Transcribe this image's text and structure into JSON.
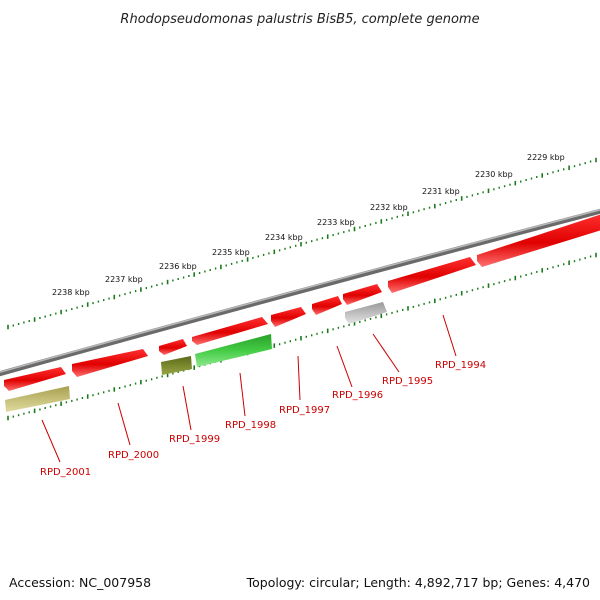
{
  "title": "Rhodopseudomonas palustris BisB5, complete genome",
  "footer": {
    "accession": "Accession: NC_007958",
    "topology": "Topology: circular; Length: 4,892,717 bp; Genes: 4,470"
  },
  "colors": {
    "backbone": "#808080",
    "tick": "#1a7a1a",
    "gene_forward": "#e00000",
    "gene_reverse_green": "#3cc63c",
    "gene_reverse_olive": "#6e7d22",
    "gene_reverse_khaki": "#c8c47a",
    "gene_reverse_grey": "#c0c0c0",
    "label": "#cc0000"
  },
  "scale_labels": [
    {
      "kbp": 2238,
      "text": "2238 kbp"
    },
    {
      "kbp": 2237,
      "text": "2237 kbp"
    },
    {
      "kbp": 2236,
      "text": "2236 kbp"
    },
    {
      "kbp": 2235,
      "text": "2235 kbp"
    },
    {
      "kbp": 2234,
      "text": "2234 kbp"
    },
    {
      "kbp": 2233,
      "text": "2233 kbp"
    },
    {
      "kbp": 2232,
      "text": "2232 kbp"
    },
    {
      "kbp": 2231,
      "text": "2231 kbp"
    },
    {
      "kbp": 2230,
      "text": "2230 kbp"
    },
    {
      "kbp": 2229,
      "text": "2229 kbp"
    }
  ],
  "gene_labels": [
    {
      "text": "RPD_2001"
    },
    {
      "text": "RPD_2000"
    },
    {
      "text": "RPD_1999"
    },
    {
      "text": "RPD_1998"
    },
    {
      "text": "RPD_1997"
    },
    {
      "text": "RPD_1996"
    },
    {
      "text": "RPD_1995"
    },
    {
      "text": "RPD_1994"
    }
  ]
}
